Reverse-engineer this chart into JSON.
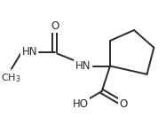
{
  "background": "#ffffff",
  "line_color": "#2a2a2a",
  "line_width": 1.4,
  "font_size": 8.5,
  "xlim": [
    -1.1,
    2.3
  ],
  "ylim": [
    -1.0,
    1.0
  ],
  "figsize": [
    1.87,
    1.49
  ],
  "dpi": 100
}
